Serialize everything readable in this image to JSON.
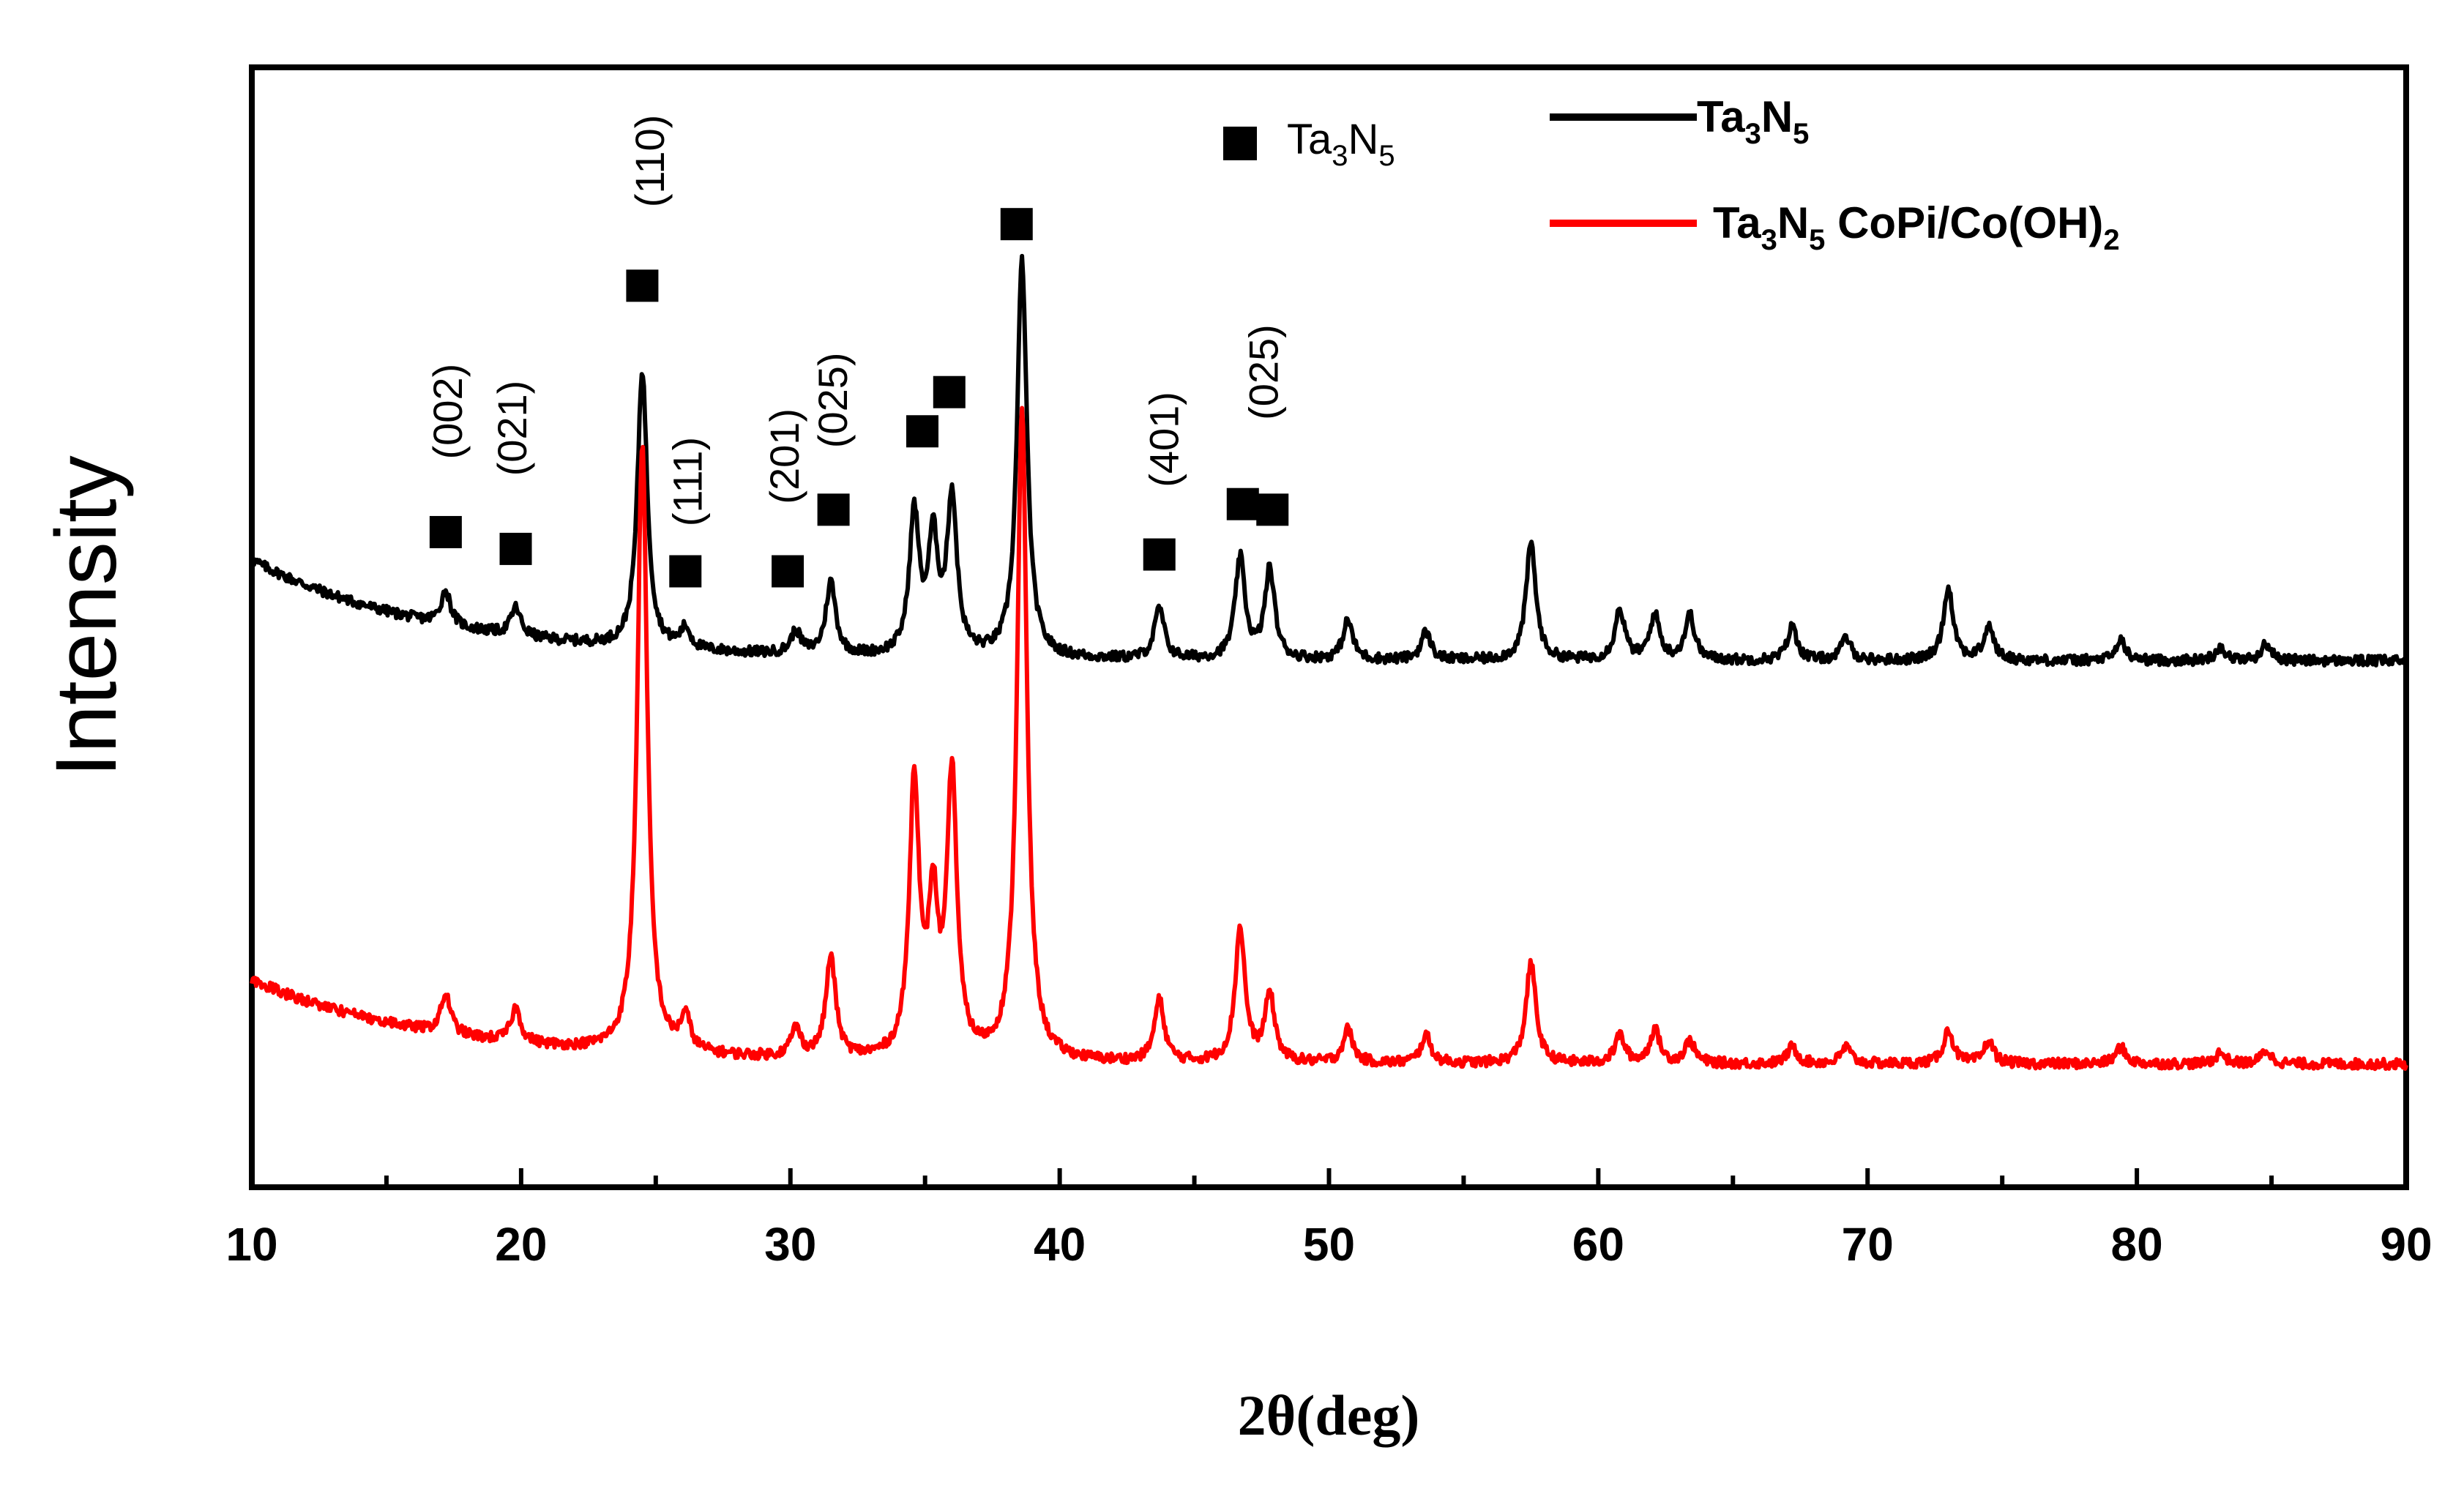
{
  "chart_data": {
    "type": "line",
    "title": "",
    "xlabel": "2θ(deg)",
    "ylabel": "Intensity",
    "xlim": [
      10,
      90
    ],
    "ylim": [
      0,
      1
    ],
    "xticks": [
      10,
      20,
      30,
      40,
      50,
      60,
      70,
      80,
      90
    ],
    "yticks_shown": false,
    "grid": false,
    "legend": {
      "placement": "top-right",
      "entries": [
        {
          "label": "Ta3N5",
          "base": "Ta",
          "sub1": "3",
          "mid": "N",
          "sub2": "5",
          "suffix": "",
          "color": "#000000"
        },
        {
          "label": "Ta3N5 CoPi/Co(OH)2",
          "base": "Ta",
          "sub1": "3",
          "mid": "N",
          "sub2": "5",
          "suffix": " CoPi/Co(OH)",
          "sub3": "2",
          "color": "#ff0000"
        }
      ]
    },
    "marker_legend": {
      "label": "Ta3N5",
      "base": "Ta",
      "sub1": "3",
      "mid": "N",
      "sub2": "5",
      "symbol": "filled-square"
    },
    "series": [
      {
        "name": "Ta3N5",
        "color": "#000000",
        "baseline": 0.47,
        "baseline_start": 0.56,
        "peaks": [
          {
            "x": 17.2,
            "h": 0.03
          },
          {
            "x": 19.8,
            "h": 0.025
          },
          {
            "x": 24.5,
            "h": 0.248
          },
          {
            "x": 26.1,
            "h": 0.018
          },
          {
            "x": 30.2,
            "h": 0.02
          },
          {
            "x": 31.5,
            "h": 0.065
          },
          {
            "x": 34.6,
            "h": 0.125
          },
          {
            "x": 35.3,
            "h": 0.1
          },
          {
            "x": 36.0,
            "h": 0.14
          },
          {
            "x": 38.6,
            "h": 0.355
          },
          {
            "x": 43.7,
            "h": 0.045
          },
          {
            "x": 46.7,
            "h": 0.09
          },
          {
            "x": 47.8,
            "h": 0.08
          },
          {
            "x": 50.7,
            "h": 0.035
          },
          {
            "x": 53.6,
            "h": 0.025
          },
          {
            "x": 57.5,
            "h": 0.105
          },
          {
            "x": 60.8,
            "h": 0.045
          },
          {
            "x": 62.1,
            "h": 0.04
          },
          {
            "x": 63.4,
            "h": 0.04
          },
          {
            "x": 67.2,
            "h": 0.03
          },
          {
            "x": 69.2,
            "h": 0.02
          },
          {
            "x": 73.0,
            "h": 0.065
          },
          {
            "x": 74.5,
            "h": 0.03
          },
          {
            "x": 79.4,
            "h": 0.018
          },
          {
            "x": 83.1,
            "h": 0.012
          },
          {
            "x": 84.8,
            "h": 0.015
          }
        ]
      },
      {
        "name": "Ta3N5 CoPi/Co(OH)2",
        "color": "#ff0000",
        "baseline": 0.11,
        "baseline_start": 0.185,
        "peaks": [
          {
            "x": 17.2,
            "h": 0.035
          },
          {
            "x": 19.8,
            "h": 0.03
          },
          {
            "x": 24.5,
            "h": 0.545
          },
          {
            "x": 26.1,
            "h": 0.03
          },
          {
            "x": 30.2,
            "h": 0.025
          },
          {
            "x": 31.5,
            "h": 0.09
          },
          {
            "x": 34.6,
            "h": 0.245
          },
          {
            "x": 35.3,
            "h": 0.13
          },
          {
            "x": 36.0,
            "h": 0.25
          },
          {
            "x": 38.6,
            "h": 0.58
          },
          {
            "x": 43.7,
            "h": 0.055
          },
          {
            "x": 46.7,
            "h": 0.12
          },
          {
            "x": 47.8,
            "h": 0.06
          },
          {
            "x": 50.7,
            "h": 0.03
          },
          {
            "x": 53.6,
            "h": 0.025
          },
          {
            "x": 57.5,
            "h": 0.09
          },
          {
            "x": 60.8,
            "h": 0.025
          },
          {
            "x": 62.1,
            "h": 0.03
          },
          {
            "x": 63.4,
            "h": 0.02
          },
          {
            "x": 67.2,
            "h": 0.015
          },
          {
            "x": 69.2,
            "h": 0.015
          },
          {
            "x": 73.0,
            "h": 0.03
          },
          {
            "x": 74.5,
            "h": 0.02
          },
          {
            "x": 79.4,
            "h": 0.015
          },
          {
            "x": 83.1,
            "h": 0.01
          },
          {
            "x": 84.8,
            "h": 0.012
          }
        ]
      }
    ],
    "annotations": {
      "markers": [
        {
          "x": 17.2,
          "y": 0.585
        },
        {
          "x": 19.8,
          "y": 0.57
        },
        {
          "x": 24.5,
          "y": 0.805
        },
        {
          "x": 26.1,
          "y": 0.55
        },
        {
          "x": 29.9,
          "y": 0.55
        },
        {
          "x": 31.6,
          "y": 0.605
        },
        {
          "x": 34.9,
          "y": 0.675
        },
        {
          "x": 35.9,
          "y": 0.71
        },
        {
          "x": 38.4,
          "y": 0.86
        },
        {
          "x": 43.7,
          "y": 0.565
        },
        {
          "x": 46.8,
          "y": 0.61
        },
        {
          "x": 47.9,
          "y": 0.605
        }
      ],
      "hkl_labels": [
        {
          "x": 17.8,
          "y": 0.65,
          "text": "(002)"
        },
        {
          "x": 20.2,
          "y": 0.635,
          "text": "(021)"
        },
        {
          "x": 25.3,
          "y": 0.875,
          "text": "(110)"
        },
        {
          "x": 26.7,
          "y": 0.59,
          "text": "(111)"
        },
        {
          "x": 30.3,
          "y": 0.61,
          "text": "(201)"
        },
        {
          "x": 32.1,
          "y": 0.66,
          "text": "(025)"
        },
        {
          "x": 44.4,
          "y": 0.625,
          "text": "(401)"
        },
        {
          "x": 48.1,
          "y": 0.685,
          "text": "(025)"
        }
      ]
    }
  }
}
